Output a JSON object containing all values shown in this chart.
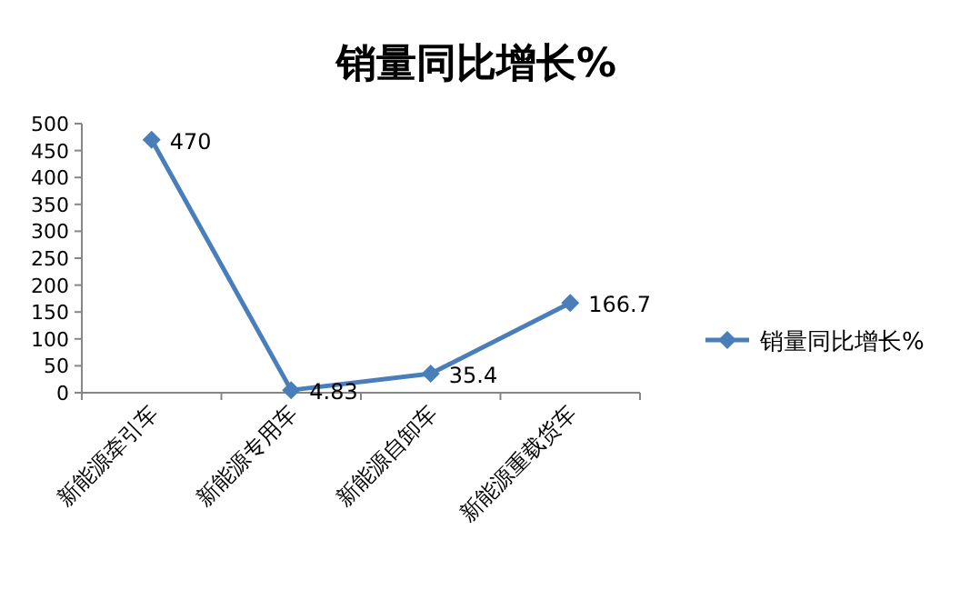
{
  "chart_data": {
    "type": "line",
    "title": "销量同比增长%",
    "categories": [
      "新能源牵引车",
      "新能源专用车",
      "新能源自卸车",
      "新能源重载货车"
    ],
    "series": [
      {
        "name": "销量同比增长%",
        "color": "#4a7ebb",
        "values": [
          470,
          4.83,
          35.4,
          166.7
        ]
      }
    ],
    "ylim": [
      0,
      500
    ],
    "yticks": [
      0,
      50,
      100,
      150,
      200,
      250,
      300,
      350,
      400,
      450,
      500
    ],
    "legend": "right",
    "marker": "diamond",
    "line_style": "solid",
    "data_labels": true
  }
}
